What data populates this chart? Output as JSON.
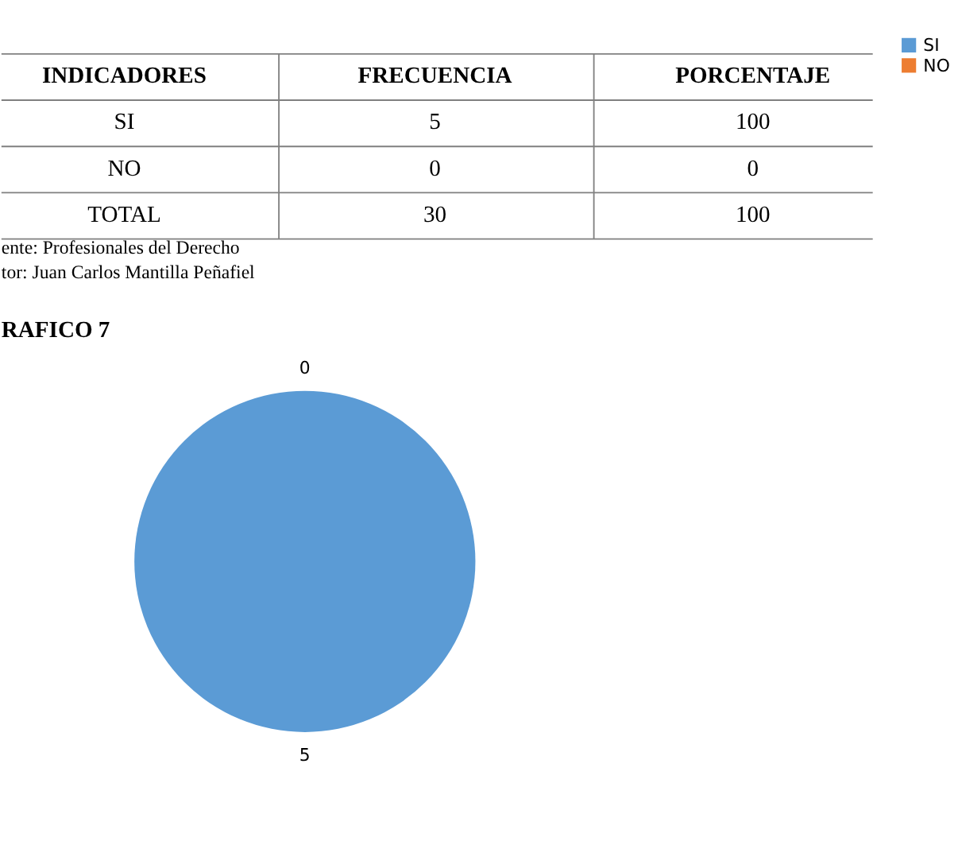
{
  "chart_data": {
    "type": "pie",
    "title": "RAFICO 7",
    "categories": [
      "SI",
      "NO"
    ],
    "values": [
      5,
      0
    ],
    "colors": [
      "#5b9bd5",
      "#ed7d31"
    ],
    "data_labels": true,
    "legend": "right",
    "annotations": [
      "INDICADORES",
      "FRECUENCIA",
      "PORCENTAJE",
      "SI",
      "5",
      "100",
      "NO",
      "0",
      "0",
      "TOTAL",
      "30",
      "100",
      "ente: Profesionales del Derecho",
      "tor: Juan Carlos Mantilla Peñafiel"
    ]
  }
}
